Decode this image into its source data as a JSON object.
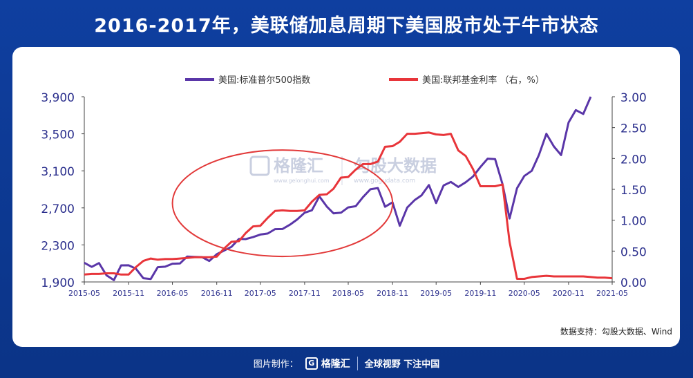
{
  "title": "2016-2017年，美联储加息周期下美国股市处于牛市状态",
  "footer": {
    "made_by": "图片制作：",
    "brand": "格隆汇",
    "brand_glyph": "G",
    "slogan": "全球视野 下注中国"
  },
  "watermark": {
    "left_brand": "格隆汇",
    "left_url": "www.gelonghui.com",
    "right_brand": "勾股大数据",
    "right_url": "www.gogudata.com"
  },
  "source": "数据支持：勾股大数据、Wind",
  "colors": {
    "series_sp500": "#5a36a8",
    "series_fed": "#e8353a",
    "circle": "#e23a3a",
    "axis_text": "#2a2e8c"
  },
  "chart_data": {
    "type": "line",
    "x_ticks": [
      "2015-05",
      "2015-11",
      "2016-05",
      "2016-11",
      "2017-05",
      "2017-11",
      "2018-05",
      "2018-11",
      "2019-05",
      "2019-11",
      "2020-05",
      "2020-11",
      "2021-05"
    ],
    "y_left": {
      "ylim": [
        1900,
        3900
      ],
      "ticks": [
        "1,900",
        "2,300",
        "2,700",
        "3,100",
        "3,500",
        "3,900"
      ]
    },
    "y_right": {
      "ylim": [
        0,
        3
      ],
      "ticks": [
        "0.00",
        "0.50",
        "1.00",
        "1.50",
        "2.00",
        "2.50",
        "3.00"
      ]
    },
    "legend_position": "top",
    "series": [
      {
        "name": "美国:标准普尔500指数",
        "axis": "left",
        "points": [
          [
            "2015-05",
            2107
          ],
          [
            "2015-06",
            2063
          ],
          [
            "2015-07",
            2104
          ],
          [
            "2015-08",
            1972
          ],
          [
            "2015-09",
            1920
          ],
          [
            "2015-10",
            2079
          ],
          [
            "2015-11",
            2080
          ],
          [
            "2015-12",
            2044
          ],
          [
            "2016-01",
            1940
          ],
          [
            "2016-02",
            1932
          ],
          [
            "2016-03",
            2060
          ],
          [
            "2016-04",
            2065
          ],
          [
            "2016-05",
            2097
          ],
          [
            "2016-06",
            2099
          ],
          [
            "2016-07",
            2174
          ],
          [
            "2016-08",
            2171
          ],
          [
            "2016-09",
            2168
          ],
          [
            "2016-10",
            2126
          ],
          [
            "2016-11",
            2199
          ],
          [
            "2016-12",
            2239
          ],
          [
            "2017-01",
            2279
          ],
          [
            "2017-02",
            2364
          ],
          [
            "2017-03",
            2363
          ],
          [
            "2017-04",
            2384
          ],
          [
            "2017-05",
            2412
          ],
          [
            "2017-06",
            2423
          ],
          [
            "2017-07",
            2470
          ],
          [
            "2017-08",
            2472
          ],
          [
            "2017-09",
            2519
          ],
          [
            "2017-10",
            2575
          ],
          [
            "2017-11",
            2648
          ],
          [
            "2017-12",
            2674
          ],
          [
            "2018-01",
            2824
          ],
          [
            "2018-02",
            2714
          ],
          [
            "2018-03",
            2641
          ],
          [
            "2018-04",
            2648
          ],
          [
            "2018-05",
            2705
          ],
          [
            "2018-06",
            2718
          ],
          [
            "2018-07",
            2816
          ],
          [
            "2018-08",
            2901
          ],
          [
            "2018-09",
            2914
          ],
          [
            "2018-10",
            2712
          ],
          [
            "2018-11",
            2760
          ],
          [
            "2018-12",
            2507
          ],
          [
            "2019-01",
            2704
          ],
          [
            "2019-02",
            2784
          ],
          [
            "2019-03",
            2834
          ],
          [
            "2019-04",
            2946
          ],
          [
            "2019-05",
            2752
          ],
          [
            "2019-06",
            2942
          ],
          [
            "2019-07",
            2980
          ],
          [
            "2019-08",
            2926
          ],
          [
            "2019-09",
            2977
          ],
          [
            "2019-10",
            3038
          ],
          [
            "2019-11",
            3141
          ],
          [
            "2019-12",
            3231
          ],
          [
            "2020-01",
            3226
          ],
          [
            "2020-02",
            2954
          ],
          [
            "2020-03",
            2585
          ],
          [
            "2020-04",
            2912
          ],
          [
            "2020-05",
            3044
          ],
          [
            "2020-06",
            3100
          ],
          [
            "2020-07",
            3271
          ],
          [
            "2020-08",
            3500
          ],
          [
            "2020-09",
            3363
          ],
          [
            "2020-10",
            3270
          ],
          [
            "2020-11",
            3622
          ],
          [
            "2020-12",
            3756
          ],
          [
            "2021-01",
            3714
          ],
          [
            "2021-02",
            3900
          ]
        ]
      },
      {
        "name": "美国:联邦基金利率 （右，%）",
        "axis": "right",
        "points": [
          [
            "2015-05",
            0.12
          ],
          [
            "2015-06",
            0.13
          ],
          [
            "2015-07",
            0.13
          ],
          [
            "2015-08",
            0.14
          ],
          [
            "2015-09",
            0.14
          ],
          [
            "2015-10",
            0.12
          ],
          [
            "2015-11",
            0.12
          ],
          [
            "2015-12",
            0.24
          ],
          [
            "2016-01",
            0.34
          ],
          [
            "2016-02",
            0.38
          ],
          [
            "2016-03",
            0.36
          ],
          [
            "2016-04",
            0.37
          ],
          [
            "2016-05",
            0.37
          ],
          [
            "2016-06",
            0.38
          ],
          [
            "2016-07",
            0.39
          ],
          [
            "2016-08",
            0.4
          ],
          [
            "2016-09",
            0.4
          ],
          [
            "2016-10",
            0.4
          ],
          [
            "2016-11",
            0.41
          ],
          [
            "2016-12",
            0.54
          ],
          [
            "2017-01",
            0.65
          ],
          [
            "2017-02",
            0.66
          ],
          [
            "2017-03",
            0.79
          ],
          [
            "2017-04",
            0.9
          ],
          [
            "2017-05",
            0.91
          ],
          [
            "2017-06",
            1.04
          ],
          [
            "2017-07",
            1.15
          ],
          [
            "2017-08",
            1.16
          ],
          [
            "2017-09",
            1.15
          ],
          [
            "2017-10",
            1.15
          ],
          [
            "2017-11",
            1.16
          ],
          [
            "2017-12",
            1.3
          ],
          [
            "2018-01",
            1.41
          ],
          [
            "2018-02",
            1.42
          ],
          [
            "2018-03",
            1.51
          ],
          [
            "2018-04",
            1.69
          ],
          [
            "2018-05",
            1.7
          ],
          [
            "2018-06",
            1.82
          ],
          [
            "2018-07",
            1.91
          ],
          [
            "2018-08",
            1.91
          ],
          [
            "2018-09",
            1.95
          ],
          [
            "2018-10",
            2.19
          ],
          [
            "2018-11",
            2.2
          ],
          [
            "2018-12",
            2.27
          ],
          [
            "2019-01",
            2.4
          ],
          [
            "2019-02",
            2.4
          ],
          [
            "2019-03",
            2.41
          ],
          [
            "2019-04",
            2.42
          ],
          [
            "2019-05",
            2.39
          ],
          [
            "2019-06",
            2.38
          ],
          [
            "2019-07",
            2.4
          ],
          [
            "2019-08",
            2.13
          ],
          [
            "2019-09",
            2.04
          ],
          [
            "2019-10",
            1.83
          ],
          [
            "2019-11",
            1.55
          ],
          [
            "2019-12",
            1.55
          ],
          [
            "2020-01",
            1.55
          ],
          [
            "2020-02",
            1.58
          ],
          [
            "2020-03",
            0.65
          ],
          [
            "2020-04",
            0.05
          ],
          [
            "2020-05",
            0.05
          ],
          [
            "2020-06",
            0.08
          ],
          [
            "2020-07",
            0.09
          ],
          [
            "2020-08",
            0.1
          ],
          [
            "2020-09",
            0.09
          ],
          [
            "2020-10",
            0.09
          ],
          [
            "2020-11",
            0.09
          ],
          [
            "2020-12",
            0.09
          ],
          [
            "2021-01",
            0.09
          ],
          [
            "2021-02",
            0.08
          ],
          [
            "2021-03",
            0.07
          ],
          [
            "2021-04",
            0.07
          ],
          [
            "2021-05",
            0.06
          ]
        ]
      }
    ],
    "annotations": [
      {
        "type": "ellipse",
        "from": "2016-05",
        "to": "2018-11",
        "y_center": 2750,
        "note": ""
      }
    ]
  }
}
